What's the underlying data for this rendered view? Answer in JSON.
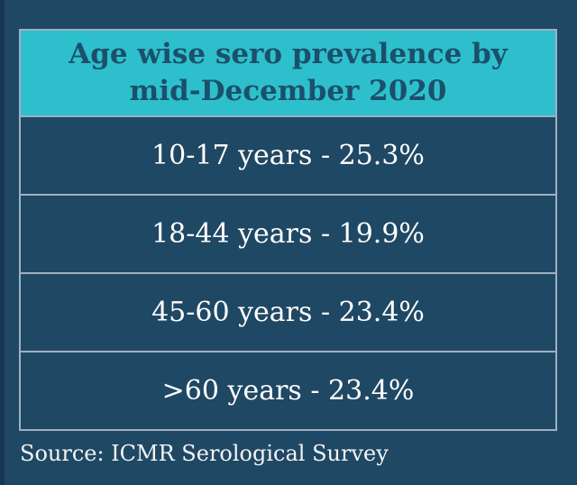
{
  "chart_data": {
    "type": "table",
    "title": "Age wise sero prevalence by mid-December 2020",
    "categories": [
      "10-17 years",
      "18-44 years",
      "45-60 years",
      ">60 years"
    ],
    "values": [
      25.3,
      19.9,
      23.4,
      23.4
    ],
    "unit": "%",
    "source": "Source: ICMR Serological Survey"
  },
  "header": {
    "title_line1": "Age wise sero prevalence by",
    "title_line2": "mid-December 2020"
  },
  "rows": [
    {
      "text": "10-17 years - 25.3%"
    },
    {
      "text": "18-44 years - 19.9%"
    },
    {
      "text": "45-60 years - 23.4%"
    },
    {
      "text": ">60 years - 23.4%"
    }
  ],
  "footer": {
    "source_text": "Source: ICMR Serological Survey"
  },
  "colors": {
    "background": "#1f4864",
    "left_strip": "#173852",
    "header_background": "#2dc0cc",
    "header_text": "#1c4f6b",
    "row_text": "#ffffff",
    "border": "#9fb0c3"
  }
}
